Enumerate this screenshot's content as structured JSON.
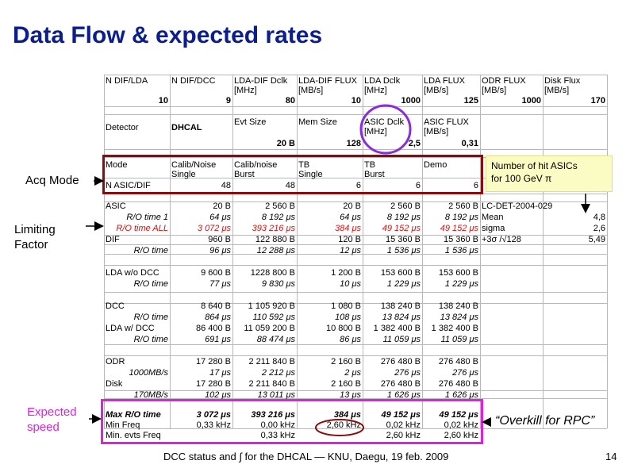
{
  "title": "Data Flow & expected rates",
  "labels": {
    "acq_mode": "Acq Mode",
    "limiting_factor": "Limiting\nFactor",
    "expected_speed": "Expected\nspeed",
    "note": "Number of hit ASICs\nfor 100 GeV π",
    "quote": "“Overkill for RPC”",
    "footer": "DCC status and ∫ for the DHCAL — KNU, Daegu, 19 feb. 2009",
    "page": "14"
  },
  "colors": {
    "title": "#0b1d8f",
    "red_box": "#8b0a0a",
    "magenta_box": "#e020e0",
    "purple_ellipse": "#8a2be2",
    "emphasis": "#d01010"
  },
  "table": {
    "header1": [
      "N DIF/LDA",
      "N DIF/DCC",
      "LDA-DIF Dclk\n[MHz]",
      "LDA-DIF FLUX\n[MB/s]",
      "LDA Dclk\n[MHz]",
      "LDA FLUX\n[MB/s]",
      "ODR FLUX\n[MB/s]",
      "Disk Flux\n[MB/s]"
    ],
    "values1": [
      "10",
      "9",
      "80",
      "10",
      "1000",
      "125",
      "1000",
      "170"
    ],
    "detector_label": "Detector",
    "detector_value": "DHCAL",
    "header2": [
      "Evt Size",
      "Mem Size",
      "ASIC Dclk\n[MHz]",
      "ASIC FLUX\n[MB/s]"
    ],
    "values2": [
      "20 B",
      "128",
      "2,5",
      "0,31"
    ],
    "mode_label": "Mode",
    "modes": [
      "Calib/Noise\nSingle",
      "Calib/noise\nBurst",
      "TB\nSingle",
      "TB\nBurst",
      "Demo"
    ],
    "nasic_label": "N ASIC/DIF",
    "nasic": [
      "48",
      "48",
      "6",
      "6",
      "6"
    ],
    "rows": [
      {
        "label": "ASIC",
        "vals": [
          "20 B",
          "2 560 B",
          "20 B",
          "2 560 B",
          "2 560 B"
        ],
        "style": ""
      },
      {
        "label": "R/O time 1",
        "vals": [
          "64 μs",
          "8 192 μs",
          "64 μs",
          "8 192 μs",
          "8 192 μs"
        ],
        "style": "it"
      },
      {
        "label": "R/O time ALL",
        "vals": [
          "3 072 μs",
          "393 216 μs",
          "384 μs",
          "49 152 μs",
          "49 152 μs"
        ],
        "style": "it red"
      },
      {
        "label": "DIF",
        "vals": [
          "960 B",
          "122 880 B",
          "120 B",
          "15 360 B",
          "15 360 B"
        ],
        "style": ""
      },
      {
        "label": "R/O time",
        "vals": [
          "96 μs",
          "12 288 μs",
          "12 μs",
          "1 536 μs",
          "1 536 μs"
        ],
        "style": "it"
      },
      {
        "label": "LDA w/o DCC",
        "vals": [
          "9 600 B",
          "1228 800 B",
          "1 200 B",
          "153 600 B",
          "153 600 B"
        ],
        "style": ""
      },
      {
        "label": "R/O time",
        "vals": [
          "77 μs",
          "9 830 μs",
          "10 μs",
          "1 229 μs",
          "1 229 μs"
        ],
        "style": "it"
      },
      {
        "label": "DCC",
        "vals": [
          "8 640 B",
          "1 105 920 B",
          "1 080 B",
          "138 240 B",
          "138 240 B"
        ],
        "style": ""
      },
      {
        "label": "R/O time",
        "vals": [
          "864 μs",
          "110 592 μs",
          "108 μs",
          "13 824 μs",
          "13 824 μs"
        ],
        "style": "it"
      },
      {
        "label": "LDA w/ DCC",
        "vals": [
          "86 400 B",
          "11 059 200 B",
          "10 800 B",
          "1 382 400 B",
          "1 382 400 B"
        ],
        "style": ""
      },
      {
        "label": "R/O time",
        "vals": [
          "691 μs",
          "88 474 μs",
          "86 μs",
          "11 059 μs",
          "11 059 μs"
        ],
        "style": "it"
      },
      {
        "label": "ODR",
        "vals": [
          "17 280 B",
          "2 211 840 B",
          "2 160 B",
          "276 480 B",
          "276 480 B"
        ],
        "style": ""
      },
      {
        "label": "1000MB/s",
        "vals": [
          "17 μs",
          "2 212 μs",
          "2 μs",
          "276 μs",
          "276 μs"
        ],
        "style": "it"
      },
      {
        "label": "Disk",
        "vals": [
          "17 280 B",
          "2 211 840 B",
          "2 160 B",
          "276 480 B",
          "276 480 B"
        ],
        "style": ""
      },
      {
        "label": "170MB/s",
        "vals": [
          "102 μs",
          "13 011 μs",
          "13 μs",
          "1 626 μs",
          "1 626 μs"
        ],
        "style": "it"
      }
    ],
    "summary": [
      {
        "label": "Max R/O time",
        "vals": [
          "3 072 μs",
          "393 216 μs",
          "384 μs",
          "49 152 μs",
          "49 152 μs"
        ],
        "style": "it b"
      },
      {
        "label": "Min Freq",
        "vals": [
          "0,33 kHz",
          "0,00 kHz",
          "2,60 kHz",
          "0,02 kHz",
          "0,02 kHz"
        ],
        "style": ""
      },
      {
        "label": "Min. evts Freq",
        "vals": [
          "",
          "0,33 kHz",
          "",
          "2,60 kHz",
          "2,60 kHz"
        ],
        "style": ""
      }
    ],
    "lcdet": {
      "ref": "LC-DET-2004-029",
      "rows": [
        {
          "label": "Mean",
          "value": "4,8"
        },
        {
          "label": "sigma",
          "value": "2,6"
        },
        {
          "label": "+3σ /√128",
          "value": "5,49"
        }
      ]
    }
  }
}
